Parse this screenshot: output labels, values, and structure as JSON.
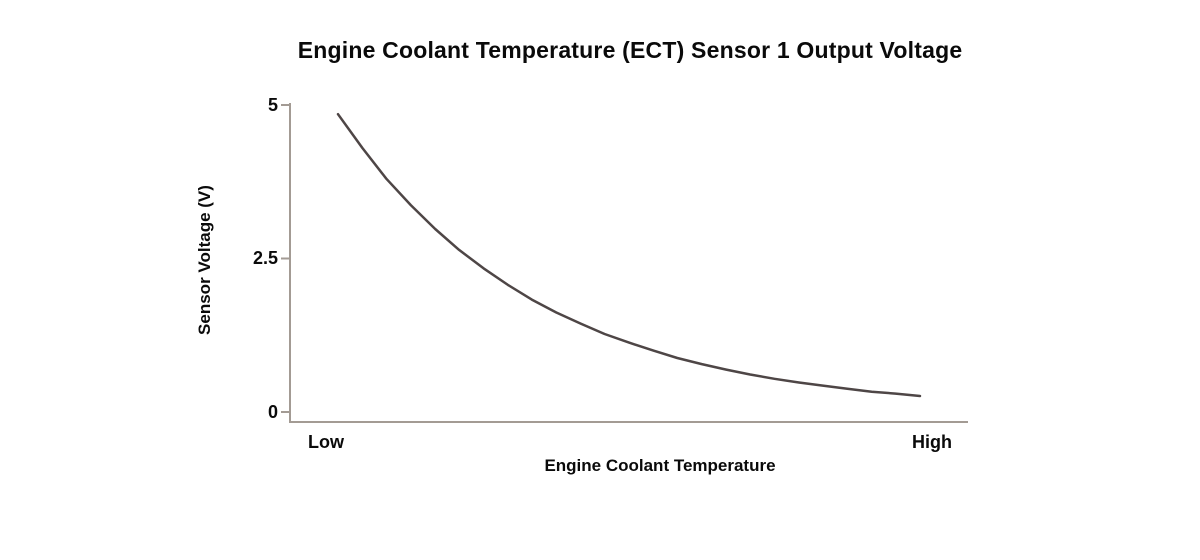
{
  "chart_data": {
    "type": "line",
    "title": "Engine Coolant Temperature (ECT) Sensor 1 Output Voltage",
    "xlabel": "Engine Coolant Temperature",
    "ylabel": "Sensor Voltage (V)",
    "x_tick_labels": [
      "Low",
      "High"
    ],
    "y_tick_labels": [
      "5",
      "2.5",
      "0"
    ],
    "y_ticks": [
      5,
      2.5,
      0
    ],
    "xlim": [
      0,
      1
    ],
    "ylim": [
      0,
      5
    ],
    "grid": false,
    "legend": "none",
    "axis_color": "#a39b94",
    "line_color": "#4e4646",
    "text_color": "#0a0a0a",
    "series": [
      {
        "name": "ECT Sensor 1 Output Voltage",
        "x": [
          0,
          0.042,
          0.083,
          0.125,
          0.167,
          0.208,
          0.25,
          0.292,
          0.333,
          0.375,
          0.417,
          0.458,
          0.5,
          0.542,
          0.583,
          0.625,
          0.667,
          0.708,
          0.75,
          0.792,
          0.833,
          0.875,
          0.917,
          0.958,
          1
        ],
        "y": [
          4.85,
          4.3,
          3.8,
          3.37,
          2.98,
          2.64,
          2.34,
          2.07,
          1.83,
          1.62,
          1.44,
          1.27,
          1.13,
          1.0,
          0.88,
          0.78,
          0.69,
          0.61,
          0.54,
          0.48,
          0.43,
          0.38,
          0.33,
          0.3,
          0.26
        ]
      }
    ]
  }
}
